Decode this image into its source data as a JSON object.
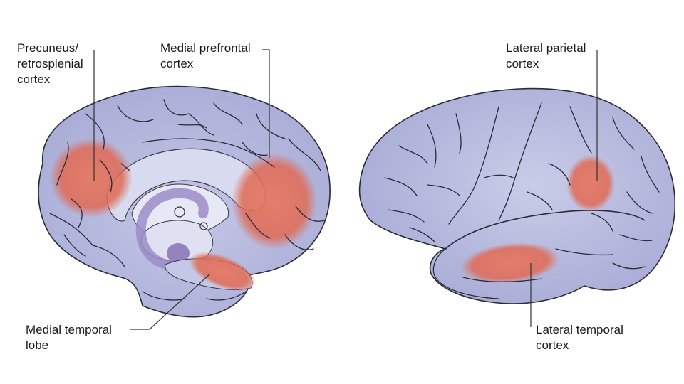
{
  "labels": {
    "precuneus": {
      "lines": [
        "Precuneus/",
        "retrosplenial",
        "cortex"
      ]
    },
    "medial_prefrontal": {
      "lines": [
        "Medial prefrontal",
        "cortex"
      ]
    },
    "medial_temporal": {
      "lines": [
        "Medial temporal",
        "lobe"
      ]
    },
    "lateral_parietal": {
      "lines": [
        "Lateral parietal",
        "cortex"
      ]
    },
    "lateral_temporal": {
      "lines": [
        "Lateral temporal",
        "cortex"
      ]
    }
  },
  "colors": {
    "brain_fill": "#aeb0d8",
    "brain_light": "#d8dbef",
    "sulcus": "#2a2a3a",
    "highlight": "#e06a55",
    "limbic": "#9b8cc8",
    "leader_line": "#333333"
  }
}
